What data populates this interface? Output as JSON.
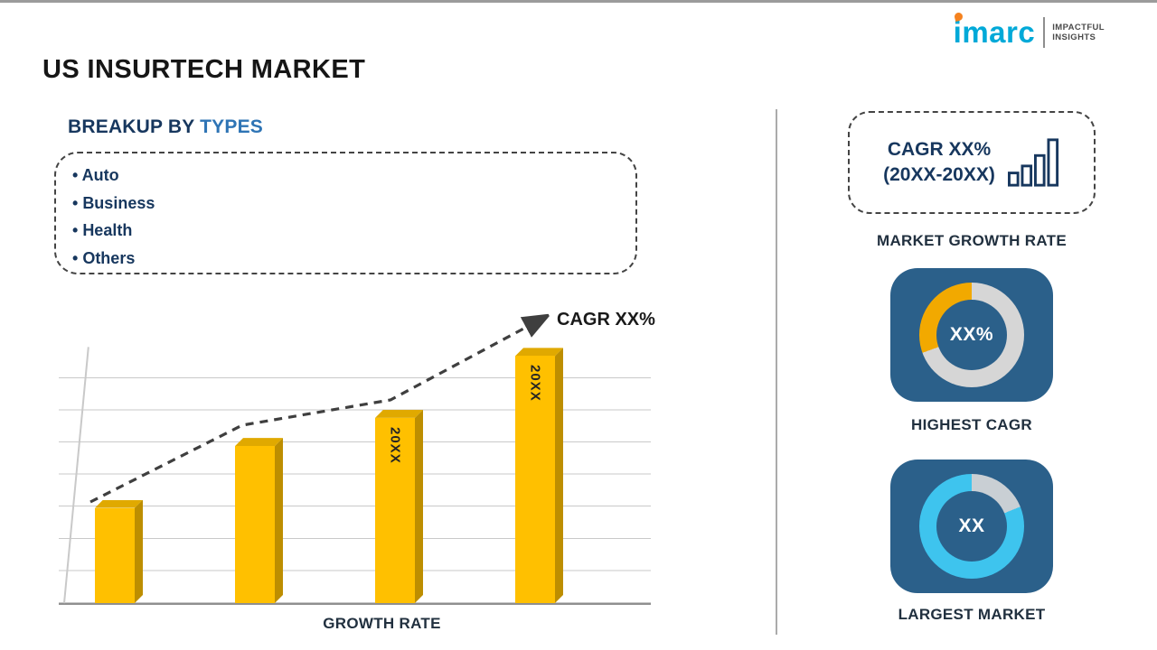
{
  "page": {
    "title": "US INSURTECH MARKET"
  },
  "logo": {
    "brand": "imarc",
    "tagline": [
      "IMPACTFUL",
      "INSIGHTS"
    ]
  },
  "breakup": {
    "heading_prefix": "BREAKUP BY ",
    "heading_highlight": "TYPES",
    "items": [
      "Auto",
      "Business",
      "Health",
      "Others"
    ]
  },
  "chart_data": {
    "type": "bar",
    "categories": [
      "",
      "",
      "20XX",
      "20XX"
    ],
    "values": [
      37,
      61,
      72,
      96
    ],
    "ylim": [
      0,
      100
    ],
    "xlabel": "GROWTH RATE",
    "ylabel": "",
    "grid": true,
    "bar_color": "#FFC000",
    "trend_line": {
      "label": "CAGR XX%",
      "style": "dashed-arrow-up"
    }
  },
  "sidebar": {
    "cagr_box": {
      "line1": "CAGR XX%",
      "line2": "(20XX-20XX)"
    },
    "market_growth_label": "MARKET GROWTH RATE",
    "highest_cagr": {
      "value": "XX%",
      "label": "HIGHEST CAGR",
      "donut": {
        "base_color": "#d6d6d6",
        "accent_color": "#f2a900",
        "accent_from_deg": 250,
        "accent_to_deg": 360
      }
    },
    "largest_market": {
      "value": "XX",
      "label": "LARGEST MARKET",
      "donut": {
        "base_color": "#c9cfd4",
        "accent_color": "#3ec4ee",
        "accent_from_deg": 68,
        "accent_to_deg": 360
      }
    }
  },
  "colors": {
    "navy-text": "#17375e",
    "blue-accent": "#2e74b5",
    "tile-blue": "#2b608a",
    "brand-cyan": "#00a9d8",
    "brand-orange": "#f5821f",
    "grid-gray": "#c9c9c9",
    "arrow-dark": "#3f3f3f"
  }
}
